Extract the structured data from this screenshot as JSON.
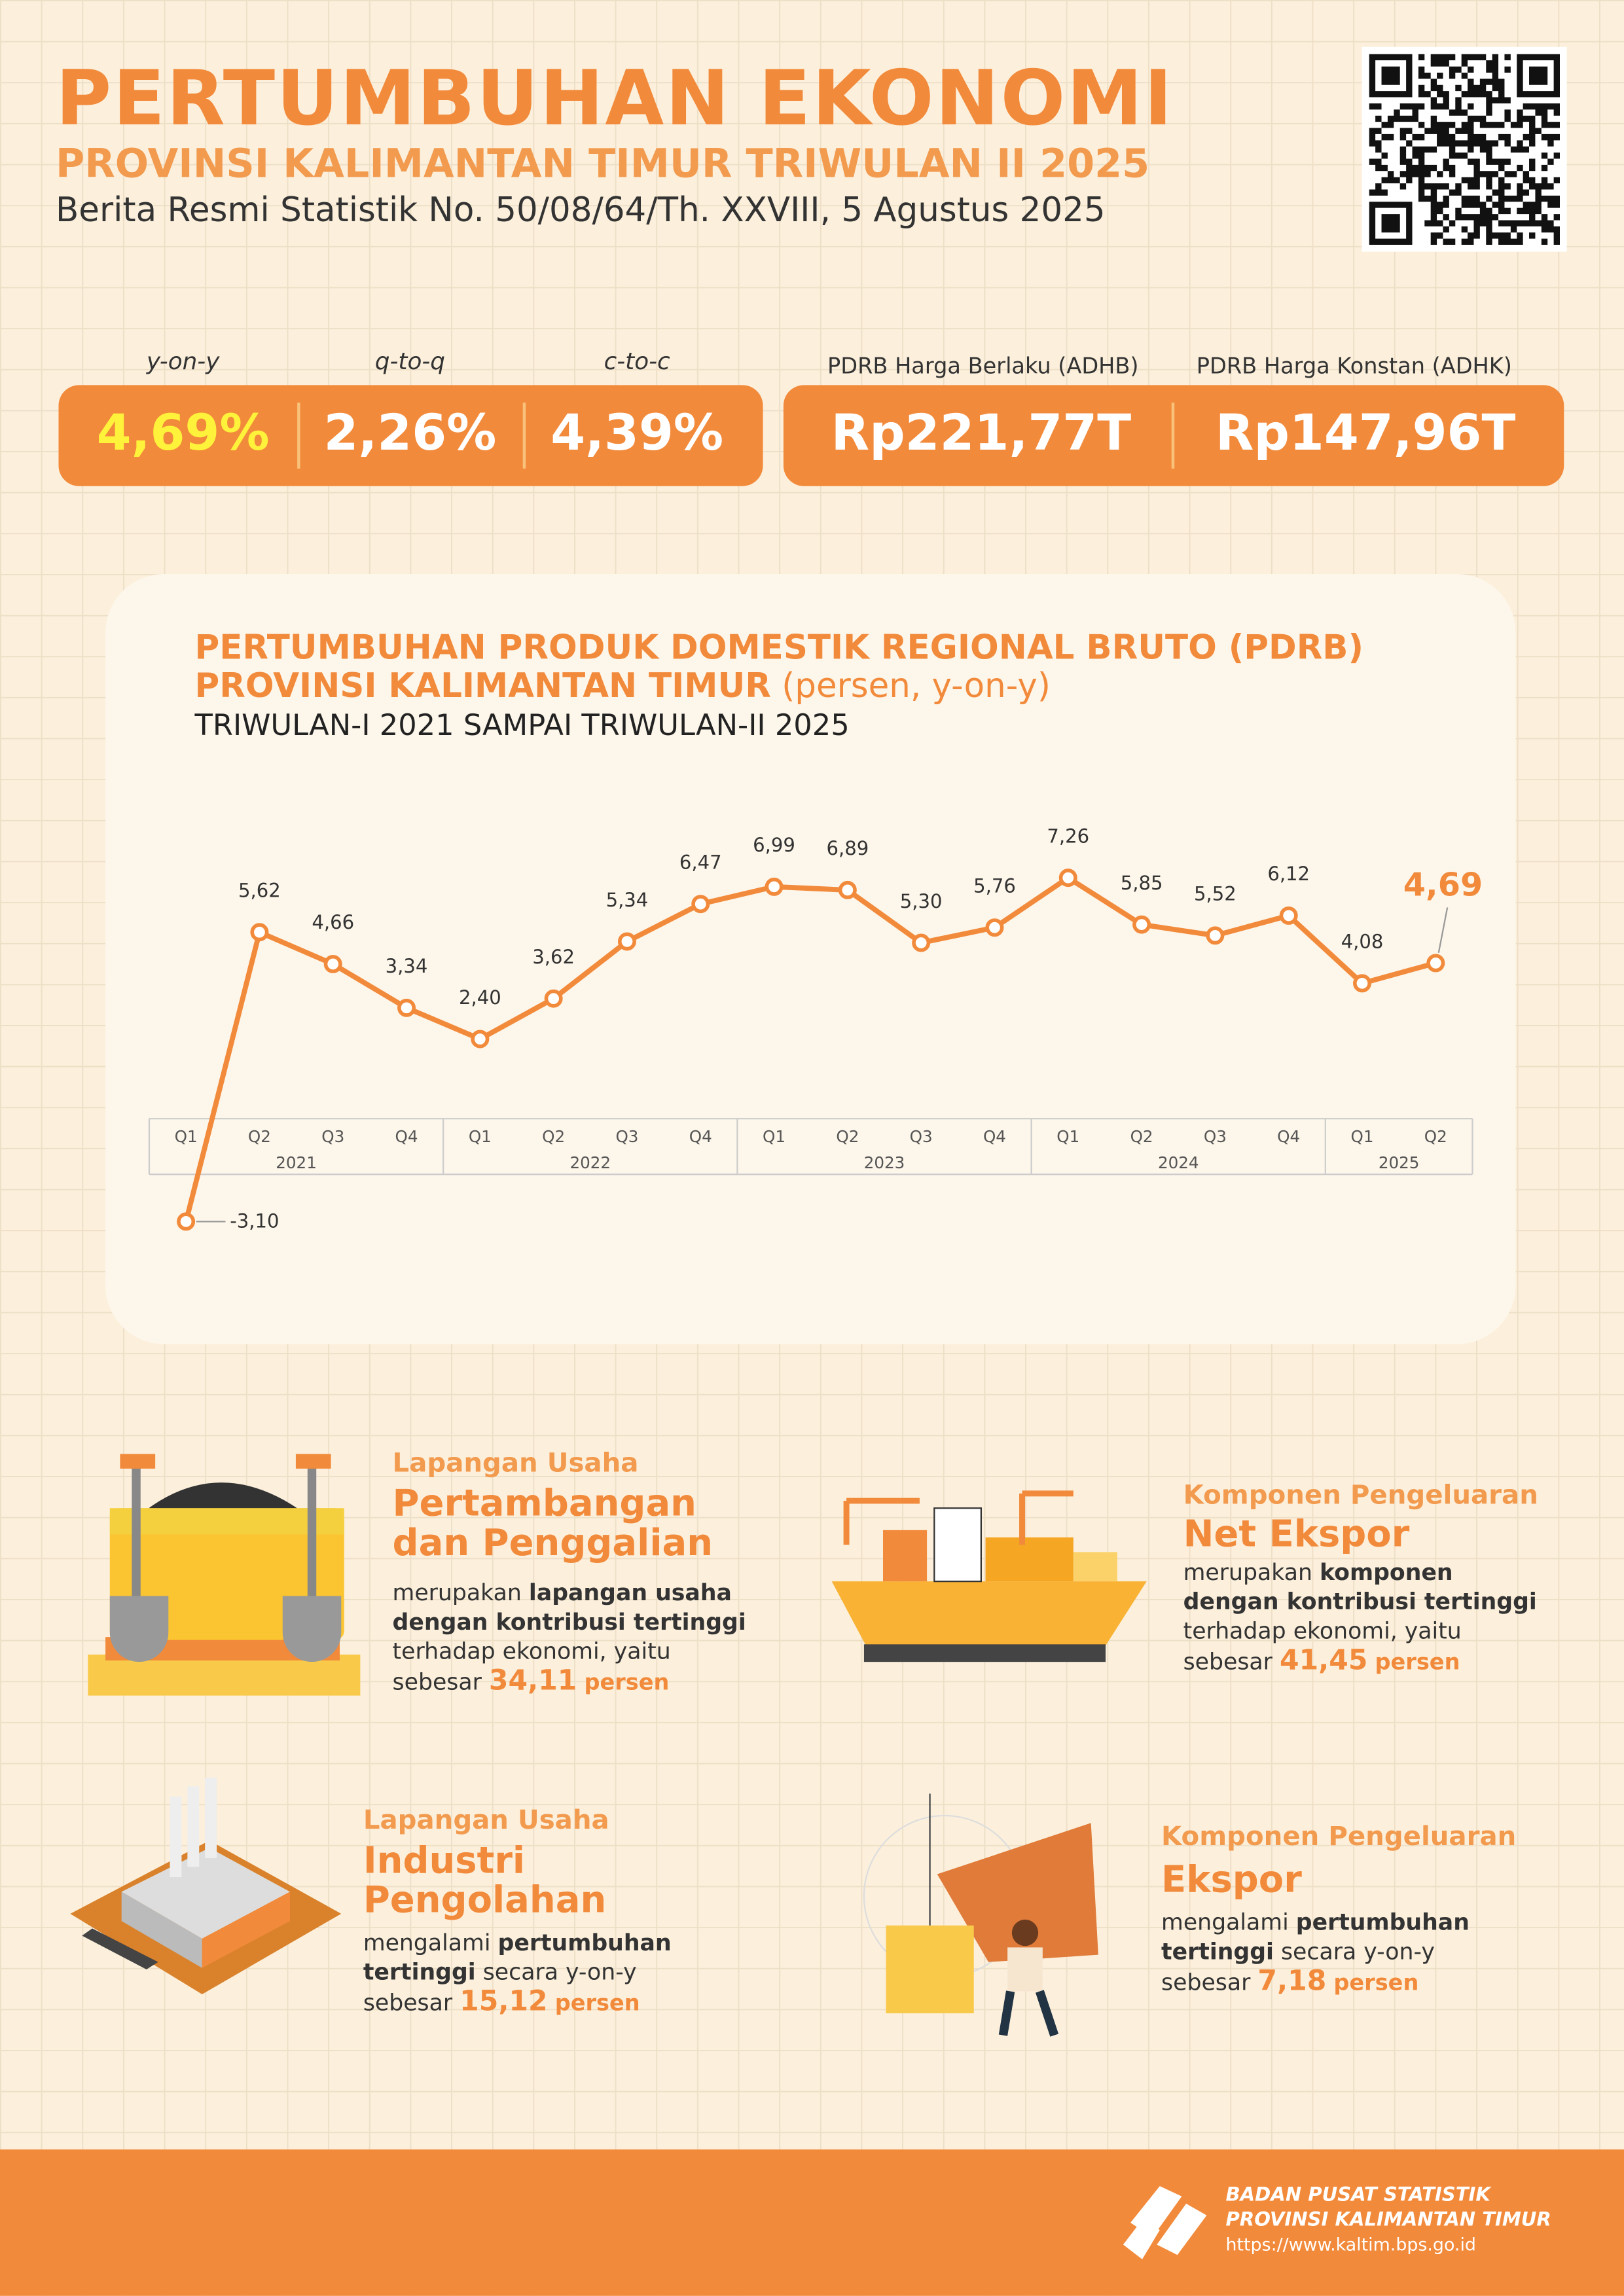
{
  "header": {
    "title": "PERTUMBUHAN EKONOMI",
    "subtitle": "PROVINSI KALIMANTAN TIMUR TRIWULAN II 2025",
    "release": "Berita Resmi Statistik No. 50/08/64/Th. XXVIII, 5 Agustus 2025"
  },
  "growth": [
    {
      "label": "y-on-y",
      "value": "4,69%"
    },
    {
      "label": "q-to-q",
      "value": "2,26%"
    },
    {
      "label": "c-to-c",
      "value": "4,39%"
    }
  ],
  "pdrb": [
    {
      "label": "PDRB Harga Berlaku (ADHB)",
      "value": "Rp221,77T"
    },
    {
      "label": "PDRB Harga Konstan (ADHK)",
      "value": "Rp147,96T"
    }
  ],
  "chart_data": {
    "type": "line",
    "title": "PERTUMBUHAN PRODUK DOMESTIK REGIONAL BRUTO (PDRB)",
    "title2": "PROVINSI KALIMANTAN TIMUR",
    "unit": "(persen, y-on-y)",
    "subtitle": "TRIWULAN-I 2021 SAMPAI TRIWULAN-II 2025",
    "categories": [
      "Q1",
      "Q2",
      "Q3",
      "Q4",
      "Q1",
      "Q2",
      "Q3",
      "Q4",
      "Q1",
      "Q2",
      "Q3",
      "Q4",
      "Q1",
      "Q2",
      "Q3",
      "Q4",
      "Q1",
      "Q2"
    ],
    "years": [
      "2021",
      "2022",
      "2023",
      "2024",
      "2025"
    ],
    "values": [
      -3.1,
      5.62,
      4.66,
      3.34,
      2.4,
      3.62,
      5.34,
      6.47,
      6.99,
      6.89,
      5.3,
      5.76,
      7.26,
      5.85,
      5.52,
      6.12,
      4.08,
      4.69
    ],
    "value_labels": [
      "-3,10",
      "5,62",
      "4,66",
      "3,34",
      "2,40",
      "3,62",
      "5,34",
      "6,47",
      "6,99",
      "6,89",
      "5,30",
      "5,76",
      "7,26",
      "5,85",
      "5,52",
      "6,12",
      "4,08",
      "4,69"
    ],
    "color": "#f28a3b"
  },
  "highlights": [
    {
      "kicker": "Lapangan Usaha",
      "title": "Pertambangan dan Penggalian",
      "pre": "merupakan",
      "bold": "lapangan usaha dengan kontribusi tertinggi",
      "post": "terhadap ekonomi, yaitu sebesar",
      "value": "34,11",
      "unit": "persen"
    },
    {
      "kicker": "Komponen Pengeluaran",
      "title": "Net Ekspor",
      "pre": "merupakan",
      "bold": "komponen dengan kontribusi tertinggi",
      "post": "terhadap ekonomi, yaitu sebesar",
      "value": "41,45",
      "unit": "persen"
    },
    {
      "kicker": "Lapangan Usaha",
      "title": "Industri Pengolahan",
      "pre": "mengalami",
      "bold": "pertumbuhan tertinggi",
      "post": "secara y-on-y sebesar",
      "value": "15,12",
      "unit": "persen"
    },
    {
      "kicker": "Komponen Pengeluaran",
      "title": "Ekspor",
      "pre": "mengalami",
      "bold": "pertumbuhan tertinggi",
      "post": "secara y-on-y sebesar",
      "value": "7,18",
      "unit": "persen"
    }
  ],
  "footer": {
    "org": "BADAN PUSAT STATISTIK",
    "region": "PROVINSI KALIMANTAN TIMUR",
    "url": "https://www.kaltim.bps.go.id"
  }
}
